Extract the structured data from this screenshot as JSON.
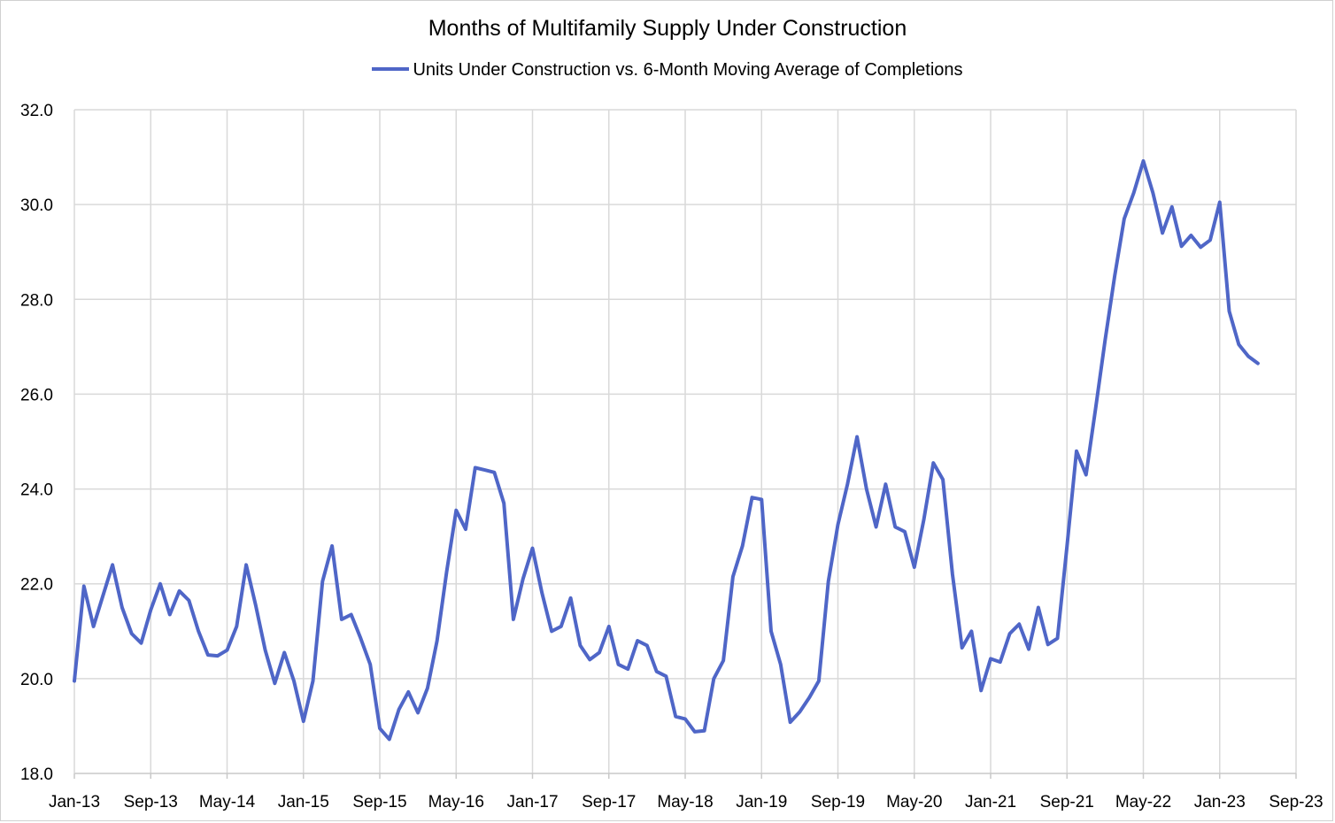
{
  "chart_data": {
    "type": "line",
    "title": "Months of Multifamily Supply Under Construction",
    "xlabel": "",
    "ylabel": "",
    "ylim": [
      18.0,
      32.0
    ],
    "y_ticks": [
      "18.0",
      "20.0",
      "22.0",
      "24.0",
      "26.0",
      "28.0",
      "30.0",
      "32.0"
    ],
    "x_ticks": [
      "Jan-13",
      "Sep-13",
      "May-14",
      "Jan-15",
      "Sep-15",
      "May-16",
      "Jan-17",
      "Sep-17",
      "May-18",
      "Jan-19",
      "Sep-19",
      "May-20",
      "Jan-21",
      "Sep-21",
      "May-22",
      "Jan-23",
      "Sep-23"
    ],
    "x_start": "Jan-13",
    "x_months": 128,
    "legend_position": "top",
    "grid": true,
    "series": [
      {
        "name": "Units Under Construction vs. 6-Month Moving Average of Completions",
        "color": "#4f66c7",
        "values": [
          19.95,
          21.95,
          21.1,
          21.75,
          22.4,
          21.5,
          20.95,
          20.75,
          21.45,
          22.0,
          21.35,
          21.85,
          21.65,
          21.0,
          20.5,
          20.48,
          20.6,
          21.1,
          22.4,
          21.55,
          20.6,
          19.9,
          20.55,
          19.95,
          19.1,
          19.95,
          22.05,
          22.8,
          21.25,
          21.35,
          20.85,
          20.3,
          18.95,
          18.72,
          19.35,
          19.72,
          19.28,
          19.8,
          20.8,
          22.25,
          23.55,
          23.15,
          24.45,
          24.4,
          24.35,
          23.7,
          21.25,
          22.1,
          22.75,
          21.8,
          21.0,
          21.1,
          21.7,
          20.7,
          20.4,
          20.55,
          21.1,
          20.3,
          20.2,
          20.8,
          20.7,
          20.15,
          20.05,
          19.2,
          19.15,
          18.88,
          18.9,
          20.0,
          20.38,
          22.15,
          22.8,
          23.82,
          23.78,
          21.0,
          20.3,
          19.08,
          19.3,
          19.6,
          19.95,
          22.05,
          23.25,
          24.1,
          25.1,
          24.0,
          23.2,
          24.1,
          23.2,
          23.1,
          22.35,
          23.35,
          24.55,
          24.2,
          22.2,
          20.65,
          21.0,
          19.75,
          20.42,
          20.35,
          20.95,
          21.15,
          20.62,
          21.5,
          20.72,
          20.85,
          22.8,
          24.8,
          24.3,
          25.7,
          27.15,
          28.5,
          29.7,
          30.25,
          30.92,
          30.25,
          29.4,
          29.95,
          29.12,
          29.35,
          29.1,
          29.25,
          30.05,
          27.75,
          27.05,
          26.8,
          26.65
        ]
      }
    ]
  }
}
